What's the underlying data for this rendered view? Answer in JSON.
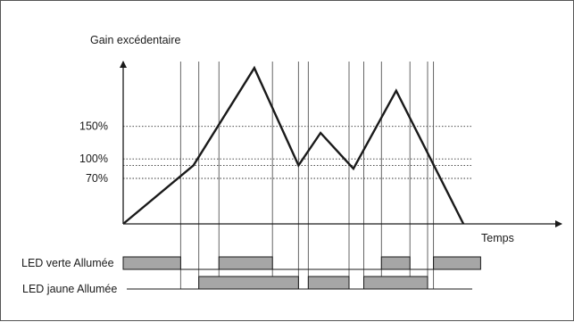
{
  "y_axis_label": "Gain excédentaire",
  "x_axis_label": "Temps",
  "y_levels": [
    {
      "label": "150%",
      "value": 150
    },
    {
      "label": "100%",
      "value": 100
    },
    {
      "label": "70%",
      "value": 70
    }
  ],
  "unlabeled_level": 90,
  "curve": {
    "t": [
      0,
      14.3,
      26.7,
      35.7,
      40.2,
      46.9,
      55.6,
      69.3
    ],
    "gain": [
      0,
      90,
      240,
      90,
      140,
      85,
      205,
      0
    ]
  },
  "led_green": {
    "label": "LED verte Allumée",
    "on_intervals": [
      [
        0,
        11.7
      ],
      [
        19.5,
        30.4
      ],
      [
        52.6,
        58.4
      ],
      [
        63.2,
        72.8
      ]
    ]
  },
  "led_yellow": {
    "label": "LED jaune Allumée",
    "on_intervals": [
      [
        15.4,
        35.7
      ],
      [
        37.7,
        46.0
      ],
      [
        49.0,
        62.0
      ]
    ]
  },
  "vertical_markers_t": [
    11.7,
    15.4,
    19.5,
    30.4,
    35.7,
    37.7,
    46.0,
    49.0,
    52.6,
    58.4,
    62.0,
    63.2
  ]
}
